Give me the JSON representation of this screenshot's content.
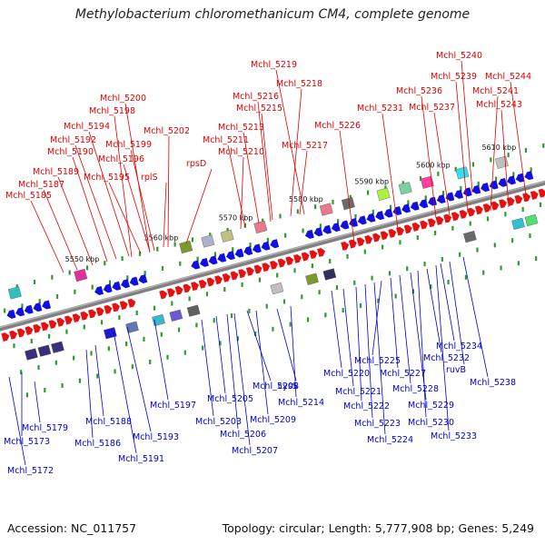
{
  "title": "Methylobacterium chloromethanicum CM4, complete genome",
  "footer": {
    "accession": "Accession: NC_011757",
    "summary": "Topology: circular; Length: 5,777,908 bp; Genes: 5,249"
  },
  "colors": {
    "top_strand_label": "#e00000",
    "bottom_strand_label": "#0000cc",
    "backbone": "#808080",
    "tick": "#2e9a2e"
  },
  "scale_labels": [
    "5550 kbp",
    "5560 kbp",
    "5570 kbp",
    "5580 kbp",
    "5590 kbp",
    "5600 kbp",
    "5610 kbp"
  ],
  "top_labels": [
    "Mchl_5185",
    "Mchl_5187",
    "Mchl_5189",
    "Mchl_5190",
    "Mchl_5192",
    "Mchl_5194",
    "Mchl_5195",
    "Mchl_5196",
    "Mchl_5198",
    "Mchl_5199",
    "Mchl_5200",
    "Mchl_5202",
    "rplS",
    "rpsD",
    "Mchl_5210",
    "Mchl_5211",
    "Mchl_5213",
    "Mchl_5215",
    "Mchl_5216",
    "Mchl_5217",
    "Mchl_5218",
    "Mchl_5219",
    "Mchl_5226",
    "Mchl_5231",
    "Mchl_5236",
    "Mchl_5237",
    "Mchl_5239",
    "Mchl_5240",
    "Mchl_5241",
    "Mchl_5243",
    "Mchl_5244"
  ],
  "bottom_labels": [
    "Mchl_5179",
    "Mchl_5173",
    "Mchl_5172",
    "Mchl_5188",
    "Mchl_5186",
    "Mchl_5193",
    "Mchl_5191",
    "Mchl_5197",
    "Mchl_5203",
    "Mchl_5205",
    "Mchl_5206",
    "Mchl_5207",
    "Mchl_5208",
    "Mchl_5209",
    "cysS",
    "Mchl_5214",
    "Mchl_5220",
    "Mchl_5221",
    "Mchl_5222",
    "Mchl_5223",
    "Mchl_5224",
    "Mchl_5225",
    "Mchl_5227",
    "Mchl_5228",
    "Mchl_5229",
    "Mchl_5230",
    "Mchl_5232",
    "Mchl_5233",
    "Mchl_5234",
    "ruvB",
    "Mchl_5238"
  ]
}
